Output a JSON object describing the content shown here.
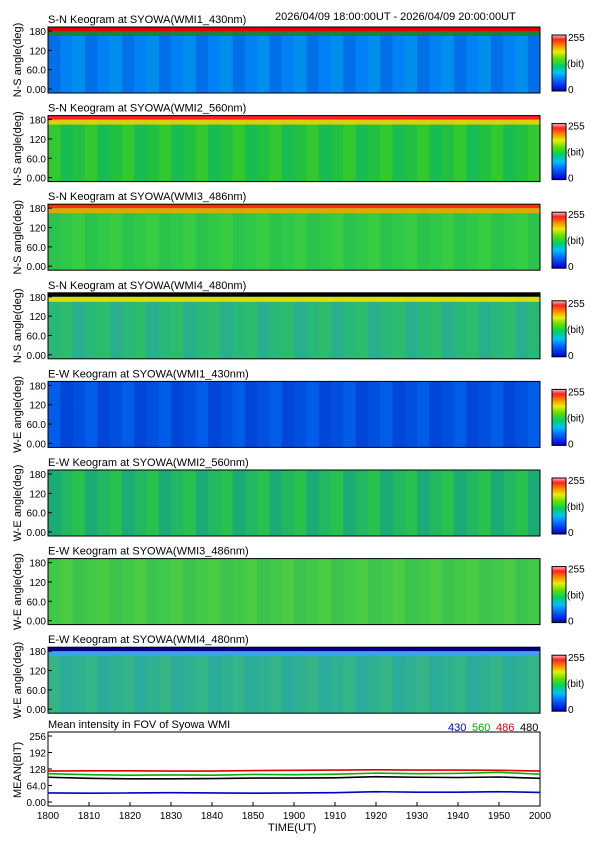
{
  "header": {
    "time_range": "2026/04/09 18:00:00UT - 2026/04/09 20:00:00UT"
  },
  "colorbar": {
    "max_label": "255",
    "unit_label": "(bit)",
    "min_label": "0"
  },
  "keograms": [
    {
      "title": "S-N Keogram at SYOWA(WMI1_430nm)",
      "ylabel": "N-S angle(deg)",
      "yticks": [
        "180",
        "120",
        "60.0",
        "0.00"
      ]
    },
    {
      "title": "S-N Keogram at SYOWA(WMI2_560nm)",
      "ylabel": "N-S angle(deg)",
      "yticks": [
        "180",
        "120",
        "60.0",
        "0.00"
      ]
    },
    {
      "title": "S-N Keogram at SYOWA(WMI3_486nm)",
      "ylabel": "N-S angle(deg)",
      "yticks": [
        "180",
        "120",
        "60.0",
        "0.00"
      ]
    },
    {
      "title": "S-N Keogram at SYOWA(WMI4_480nm)",
      "ylabel": "N-S angle(deg)",
      "yticks": [
        "180",
        "120",
        "60.0",
        "0.00"
      ]
    },
    {
      "title": "E-W Keogram at SYOWA(WMI1_430nm)",
      "ylabel": "W-E angle(deg)",
      "yticks": [
        "180",
        "120",
        "60.0",
        "0.00"
      ]
    },
    {
      "title": "E-W Keogram at SYOWA(WMI2_560nm)",
      "ylabel": "W-E angle(deg)",
      "yticks": [
        "180",
        "120",
        "60.0",
        "0.00"
      ]
    },
    {
      "title": "E-W Keogram at SYOWA(WMI3_486nm)",
      "ylabel": "W-E angle(deg)",
      "yticks": [
        "180",
        "120",
        "60.0",
        "0.00"
      ]
    },
    {
      "title": "E-W Keogram at SYOWA(WMI4_480nm)",
      "ylabel": "W-E angle(deg)",
      "yticks": [
        "180",
        "120",
        "60.0",
        "0.00"
      ]
    }
  ],
  "colors": {
    "430": "#0000c8",
    "560": "#00b000",
    "486": "#e00000",
    "480": "#000000"
  },
  "chart_data": {
    "type": "line",
    "title": "Mean intensity in FOV of Syowa WMI",
    "xlabel": "TIME(UT)",
    "ylabel": "MEAN(BIT)",
    "xticks": [
      "1800",
      "1810",
      "1820",
      "1830",
      "1840",
      "1850",
      "1900",
      "1910",
      "1920",
      "1930",
      "1940",
      "1950",
      "2000"
    ],
    "yticks": [
      "256",
      "192",
      "128",
      "64.0",
      "0.00"
    ],
    "ylim": [
      0,
      256
    ],
    "x": [
      "18:00",
      "18:10",
      "18:20",
      "18:30",
      "18:40",
      "18:50",
      "19:00",
      "19:10",
      "19:20",
      "19:30",
      "19:40",
      "19:50",
      "20:00"
    ],
    "series": [
      {
        "name": "430",
        "color": "#0000c8",
        "values": [
          35,
          34,
          35,
          36,
          35,
          34,
          35,
          36,
          40,
          38,
          38,
          40,
          37
        ]
      },
      {
        "name": "560",
        "color": "#00b000",
        "values": [
          110,
          106,
          104,
          105,
          104,
          107,
          106,
          108,
          112,
          110,
          111,
          115,
          108
        ]
      },
      {
        "name": "486",
        "color": "#e00000",
        "values": [
          120,
          121,
          121,
          120,
          120,
          122,
          123,
          124,
          125,
          124,
          124,
          123,
          120
        ]
      },
      {
        "name": "480",
        "color": "#000000",
        "values": [
          96,
          92,
          90,
          90,
          91,
          93,
          93,
          94,
          98,
          96,
          95,
          97,
          92
        ]
      }
    ]
  }
}
